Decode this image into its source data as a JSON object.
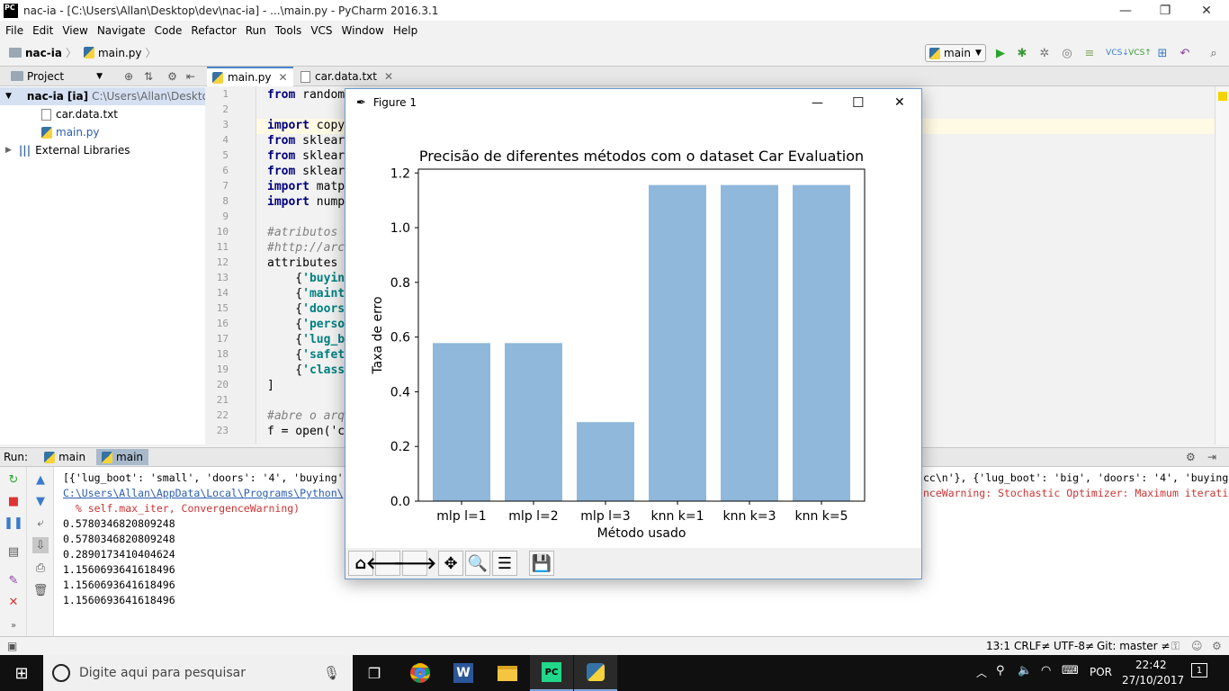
{
  "window": {
    "title": "nac-ia - [C:\\Users\\Allan\\Desktop\\dev\\nac-ia] - ...\\main.py - PyCharm 2016.3.1",
    "logo": "PC",
    "minimize": "—",
    "restore": "❐",
    "close": "✕"
  },
  "menu": [
    "File",
    "Edit",
    "View",
    "Navigate",
    "Code",
    "Refactor",
    "Run",
    "Tools",
    "VCS",
    "Window",
    "Help"
  ],
  "navbar": {
    "project": "nac-ia",
    "file": "main.py",
    "run_config": "main"
  },
  "project_panel": {
    "title": "Project",
    "root_name": "nac-ia",
    "root_tag": "[ia]",
    "root_path": "C:\\Users\\Allan\\Desktop\\",
    "files": [
      "car.data.txt",
      "main.py"
    ],
    "external": "External Libraries"
  },
  "editor": {
    "tabs": [
      "main.py",
      "car.data.txt"
    ],
    "line_numbers": [
      "1",
      "2",
      "3",
      "4",
      "5",
      "6",
      "7",
      "8",
      "9",
      "10",
      "11",
      "12",
      "13",
      "14",
      "15",
      "16",
      "17",
      "18",
      "19",
      "20",
      "21",
      "22",
      "23"
    ],
    "lines": {
      "l1": "from random",
      "l3": "import copy",
      "l4": "from sklear",
      "l5": "from sklear",
      "l6": "from sklear",
      "l7": "import matp",
      "l8": "import nump",
      "l10": "#atributos",
      "l11": "#http://arc",
      "l12": "attributes",
      "l13": "    {'buyin",
      "l14": "    {'maint",
      "l15": "    {'doors",
      "l16": "    {'perso",
      "l17": "    {'lug_b",
      "l18": "    {'safet",
      "l19": "    {'class",
      "l20": "]",
      "l22": "#abre o arq",
      "l23": "f = open('c"
    }
  },
  "run_panel": {
    "label": "Run:",
    "tabs": [
      "main",
      "main"
    ],
    "console": {
      "c1": "[{'lug_boot': 'small', 'doors': '4', 'buying'",
      "c1b": "cc\\n'}, {'lug_boot': 'big', 'doors': '4', 'buying",
      "c2": "C:\\Users\\Allan\\AppData\\Local\\Programs\\Python\\",
      "c2b": "nceWarning: Stochastic Optimizer: Maximum iterati",
      "c3": "  % self.max_iter, ConvergenceWarning)",
      "c4": "0.5780346820809248",
      "c5": "0.5780346820809248",
      "c6": "0.2890173410404624",
      "c7": "1.1560693641618496",
      "c8": "1.1560693641618496",
      "c9": "1.1560693641618496"
    }
  },
  "statusbar": {
    "position": "13:1",
    "line_sep": "CRLF≠",
    "encoding": "UTF-8≠",
    "git": "Git: master ≠"
  },
  "taskbar": {
    "search_placeholder": "Digite aqui para pesquisar",
    "lang": "POR",
    "time": "22:42",
    "date": "27/10/2017",
    "notifications": "1"
  },
  "figure": {
    "title": "Figure 1",
    "minimize": "—",
    "maximize": "☐",
    "close": "✕",
    "toolbar_icons": [
      "home-icon",
      "back-arrow-icon",
      "forward-arrow-icon",
      "pan-icon",
      "zoom-icon",
      "configure-subplots-icon",
      "save-icon"
    ]
  },
  "chart_data": {
    "type": "bar",
    "title": "Precisão de diferentes métodos com o dataset Car Evaluation",
    "xlabel": "Método usado",
    "ylabel": "Taxa de erro",
    "categories": [
      "mlp l=1",
      "mlp l=2",
      "mlp l=3",
      "knn k=1",
      "knn k=3",
      "knn k=5"
    ],
    "values": [
      0.578,
      0.578,
      0.289,
      1.156,
      1.156,
      1.156
    ],
    "ylim": [
      0,
      1.214
    ],
    "yticks": [
      "0.0",
      "0.2",
      "0.4",
      "0.6",
      "0.8",
      "1.0",
      "1.2"
    ],
    "ytick_values": [
      0,
      0.2,
      0.4,
      0.6,
      0.8,
      1.0,
      1.2
    ],
    "bar_color": "#8fb8da",
    "grid": false
  }
}
